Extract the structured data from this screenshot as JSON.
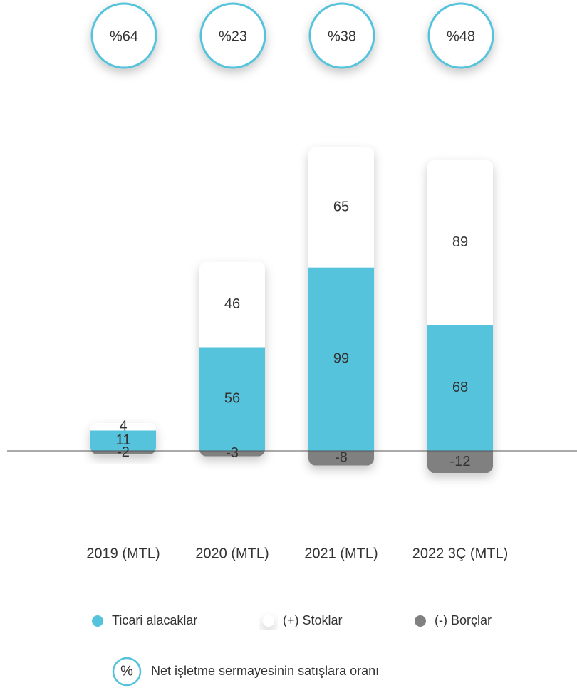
{
  "chart_data": {
    "type": "bar",
    "stacked": true,
    "categories": [
      "2019 (MTL)",
      "2020 (MTL)",
      "2021 (MTL)",
      "2022 3Ç (MTL)"
    ],
    "series": [
      {
        "name": "Ticari alacaklar",
        "color": "#55c3dc",
        "values": [
          11,
          56,
          99,
          68
        ]
      },
      {
        "name": "(+) Stoklar",
        "color": "#ffffff",
        "values": [
          4,
          46,
          65,
          89
        ]
      },
      {
        "name": "(-) Borçlar",
        "color": "#808080",
        "values": [
          -2,
          -3,
          -8,
          -12
        ]
      }
    ],
    "ratio_values": [
      64,
      23,
      38,
      48
    ],
    "ratio_labels": [
      "%64",
      "%23",
      "%38",
      "%48"
    ],
    "ratio_legend": {
      "symbol": "%",
      "label": "Net işletme sermayesinin satışlara oranı"
    }
  }
}
